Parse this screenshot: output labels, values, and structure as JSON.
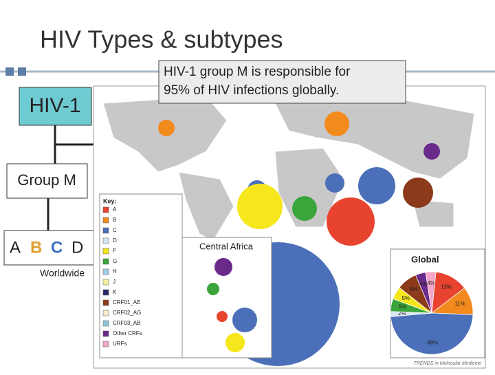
{
  "title": "HIV Types & subtypes",
  "callout": [
    "HIV-1 group M is responsible for",
    "95% of HIV infections globally."
  ],
  "tree": {
    "root": "HIV-1",
    "group": "Group M",
    "subtypes": [
      {
        "label": "A",
        "color": "#222222"
      },
      {
        "label": "B",
        "color": "#e0a030"
      },
      {
        "label": "C",
        "color": "#3b6fc0"
      },
      {
        "label": "D",
        "color": "#222222"
      }
    ],
    "note": "Worldwide"
  },
  "map": {
    "key_title": "Key:",
    "key": [
      {
        "label": "A",
        "color": "#e8432e"
      },
      {
        "label": "B",
        "color": "#f28a1e"
      },
      {
        "label": "C",
        "color": "#4b6fb8"
      },
      {
        "label": "D",
        "color": "#d8e6f2"
      },
      {
        "label": "F",
        "color": "#f5e71b"
      },
      {
        "label": "G",
        "color": "#3aa53a"
      },
      {
        "label": "H",
        "color": "#9fcfe8"
      },
      {
        "label": "J",
        "color": "#f3f0a0"
      },
      {
        "label": "K",
        "color": "#2a2a6a"
      },
      {
        "label": "CRF01_AE",
        "color": "#8b3a1a"
      },
      {
        "label": "CRF02_AG",
        "color": "#f6ecc8"
      },
      {
        "label": "CRF03_AB",
        "color": "#8ec6d8"
      },
      {
        "label": "Other CRFs",
        "color": "#6a2a8a"
      },
      {
        "label": "URFs",
        "color": "#f5a6c8"
      }
    ],
    "inset_label": "Central Africa",
    "credit": "TRENDS in Molecular Medicine",
    "global_pie": {
      "type": "pie",
      "title": "Global",
      "values": [
        4,
        13,
        11,
        48,
        2,
        5,
        5,
        8,
        4
      ],
      "value_labels": [
        "4%",
        "13%",
        "11%",
        "48%",
        "2%",
        "5%",
        "5%",
        "8%",
        "4%"
      ],
      "colors": [
        "#f5a6c8",
        "#e8432e",
        "#f28a1e",
        "#4b6fb8",
        "#d8e6f2",
        "#3aa53a",
        "#f5e71b",
        "#8b3a1a",
        "#6a2a8a"
      ]
    }
  }
}
